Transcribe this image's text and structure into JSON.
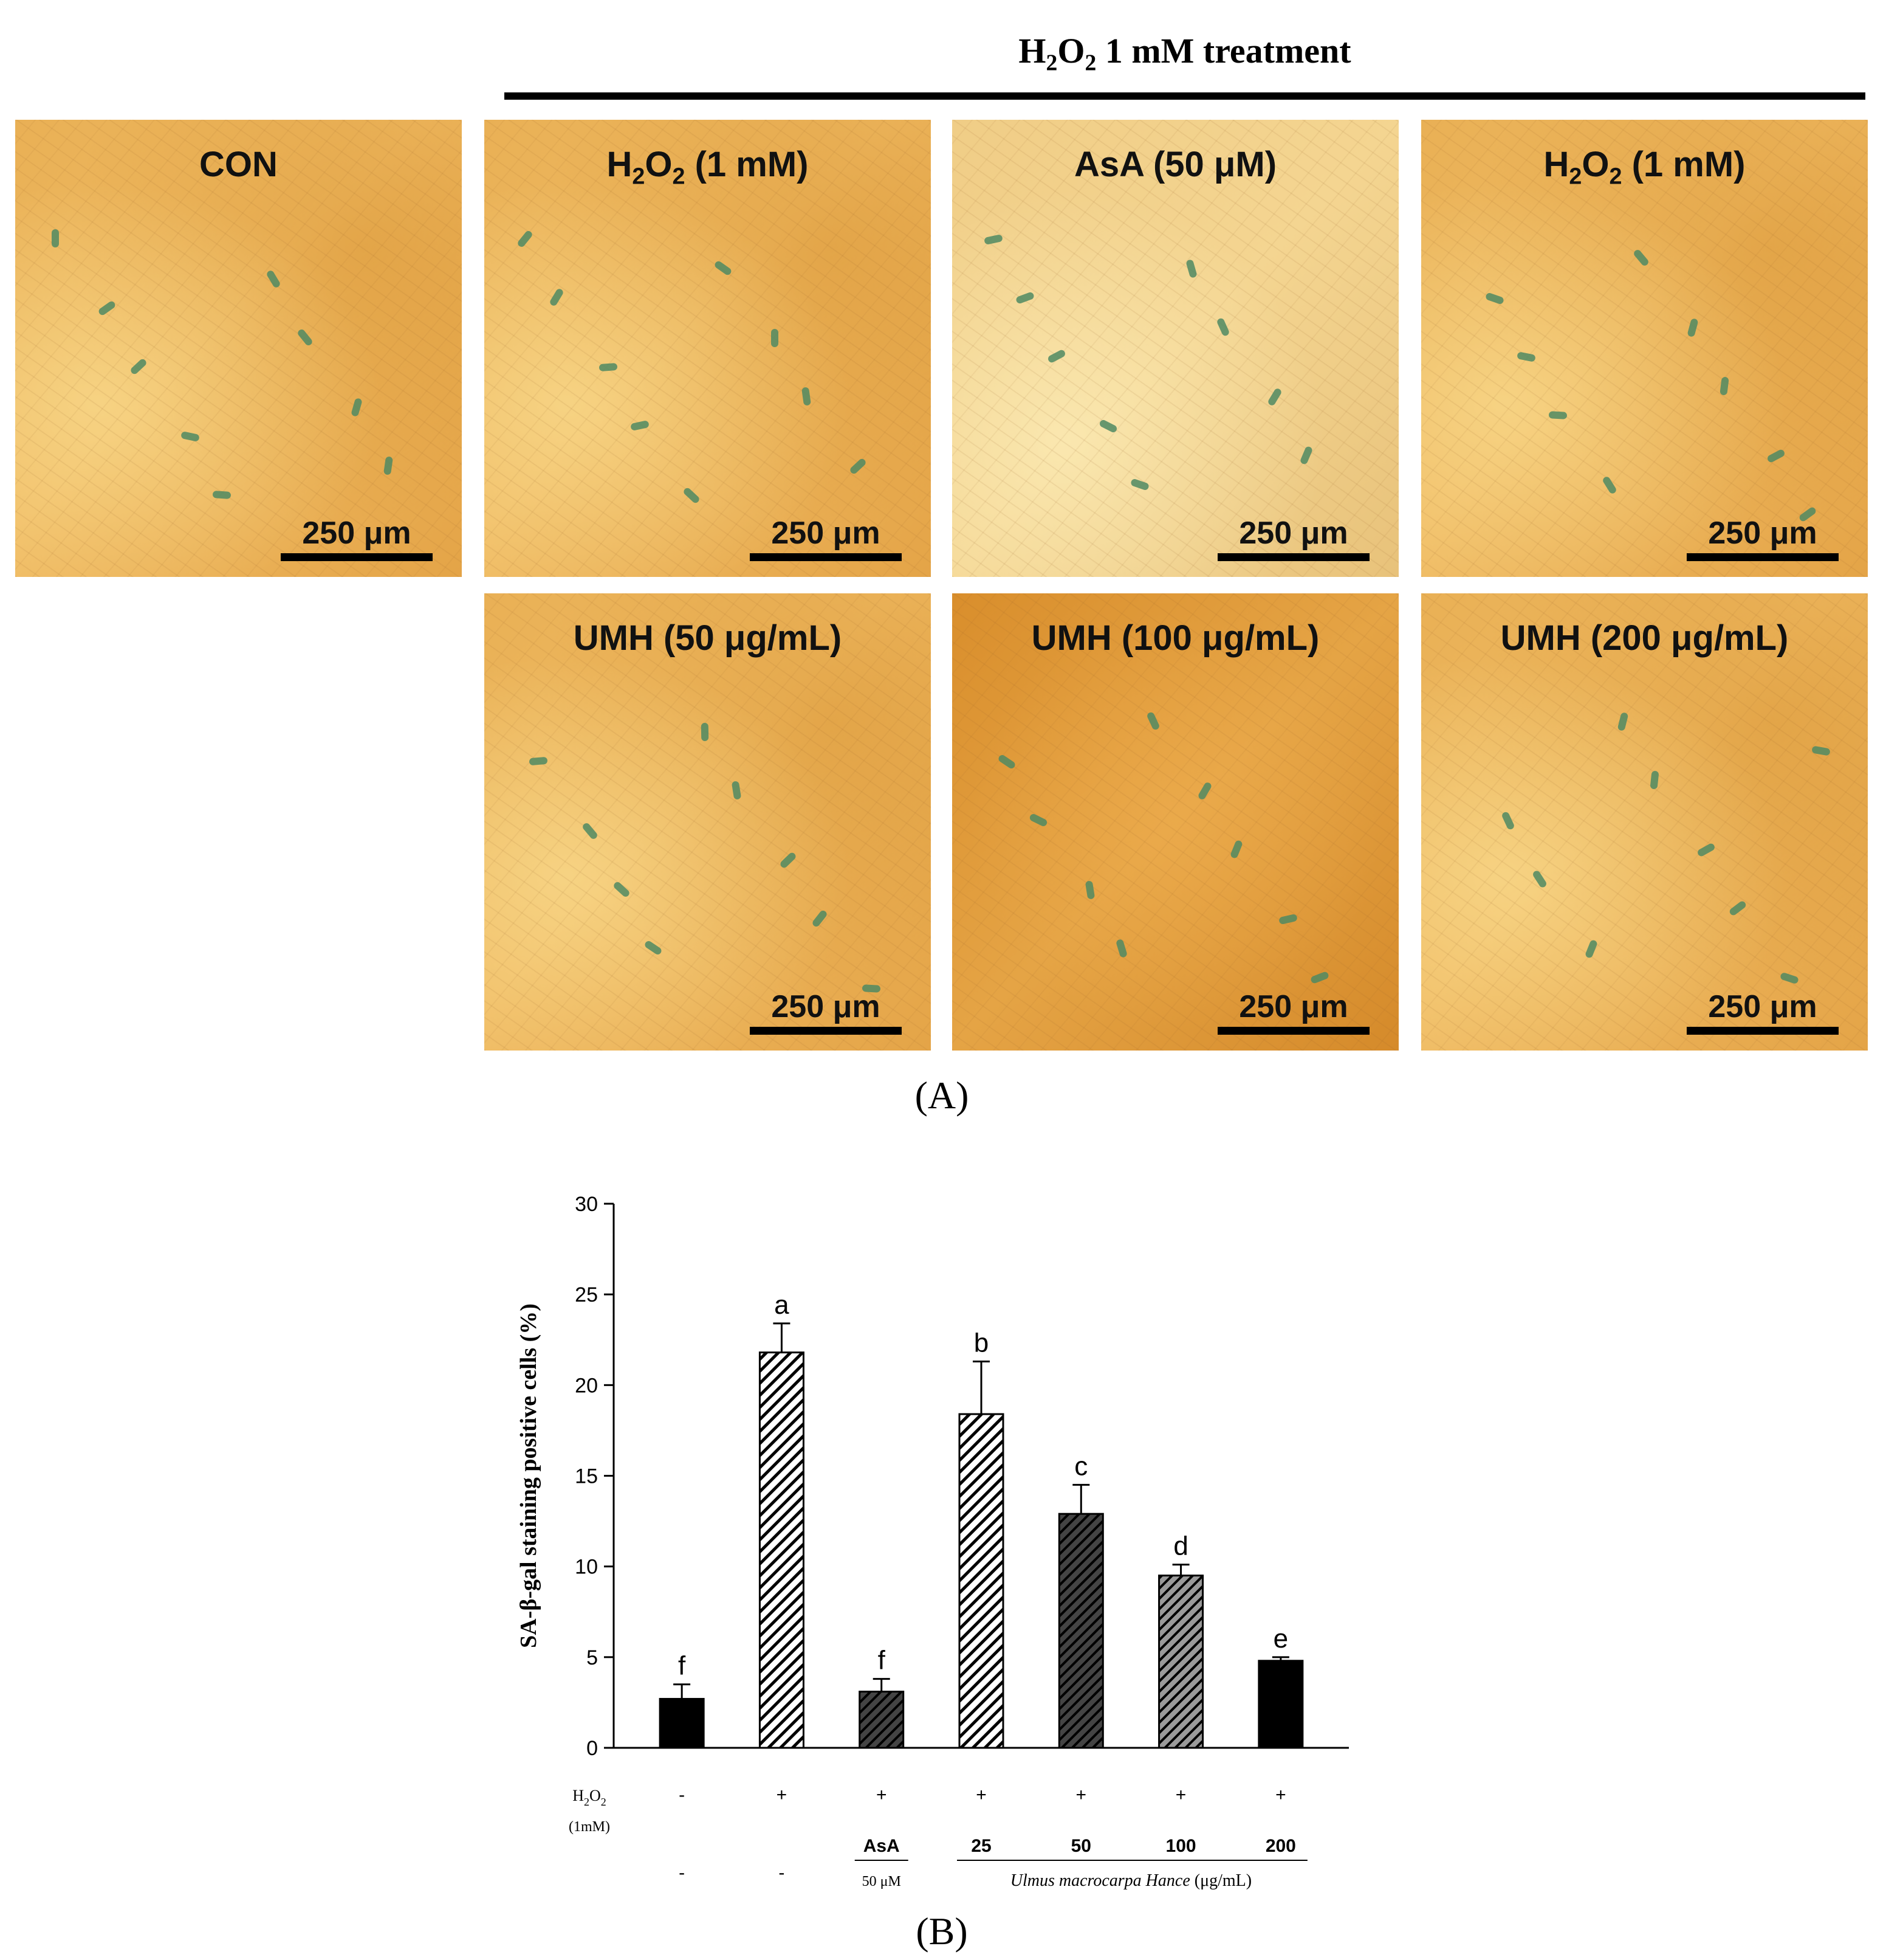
{
  "panel_a": {
    "header": "H2O2 1 mM treatment",
    "panels": [
      {
        "label": "CON",
        "scale": "250  μm"
      },
      {
        "label": "H2O2 (1 mM)",
        "scale": "250  μm"
      },
      {
        "label": "AsA (50 μM)",
        "scale": "250  μm"
      },
      {
        "label": "H2O2 (1 mM)",
        "scale": "250  μm"
      },
      {
        "label": "UMH (50  μg/mL)",
        "scale": "250  μm"
      },
      {
        "label": "UMH (100  μg/mL)",
        "scale": "250  μm"
      },
      {
        "label": "UMH (200  μg/mL)",
        "scale": "250  μm"
      }
    ],
    "caption": "(A)"
  },
  "chart_data": {
    "type": "bar",
    "ylabel": "SA-β-gal staining positive cells (%)",
    "ylim": [
      0,
      30
    ],
    "yticks": [
      0,
      5,
      10,
      15,
      20,
      25,
      30
    ],
    "categories": [
      "1",
      "2",
      "3",
      "4",
      "5",
      "6",
      "7"
    ],
    "values": [
      2.7,
      21.8,
      3.1,
      18.4,
      12.9,
      9.5,
      4.8
    ],
    "errors": [
      0.8,
      1.6,
      0.7,
      2.9,
      1.6,
      0.6,
      0.2
    ],
    "letters": [
      "f",
      "a",
      "f",
      "b",
      "c",
      "d",
      "e"
    ],
    "fills": [
      "solid-black",
      "diag-light",
      "diag-dark",
      "diag-light",
      "diag-dark",
      "diag-medium",
      "solid-black"
    ],
    "h2o2_row": {
      "label": "H2O2",
      "sublabel": "(1mM)",
      "values": [
        "-",
        "+",
        "+",
        "+",
        "+",
        "+",
        "+"
      ]
    },
    "treatment_row": {
      "values": [
        "-",
        "-",
        "AsA",
        "25",
        "50",
        "100",
        "200"
      ],
      "asa_sub": "50 μM",
      "extract_label": "Ulmus macrocarpa Hance (μg/mL)"
    },
    "caption": "(B)"
  }
}
